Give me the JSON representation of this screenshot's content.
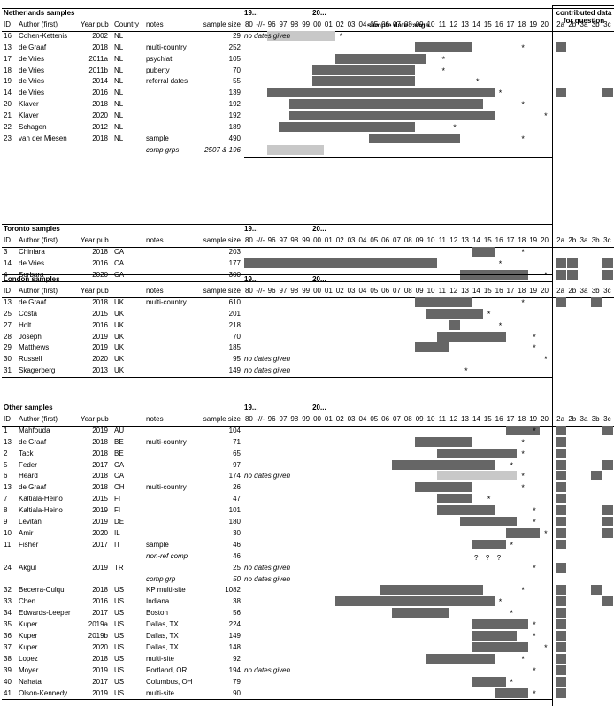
{
  "header": {
    "range_title": "sample date range",
    "contrib_title": "contributed data for question",
    "year_labels": [
      "80",
      "-//-",
      "96",
      "97",
      "98",
      "99",
      "00",
      "01",
      "02",
      "03",
      "04",
      "05",
      "06",
      "07",
      "08",
      "09",
      "10",
      "11",
      "12",
      "13",
      "14",
      "15",
      "16",
      "17",
      "18",
      "19",
      "20"
    ],
    "q_labels": [
      "2a",
      "2b",
      "3a",
      "3b",
      "3c"
    ],
    "era_19": "19...",
    "era_20": "20..."
  },
  "sections": [
    {
      "title": "Netherlands samples",
      "cols": {
        "id": "ID",
        "author": "Author (first)",
        "year": "Year pub",
        "country": "Country",
        "notes": "notes",
        "size": "sample size"
      },
      "rows": [
        {
          "id": "16",
          "author": "Cohen-Kettenis",
          "year": "2002",
          "country": "NL",
          "notes": "",
          "size": "29",
          "range_note": "no dates given",
          "bar": [
            1996,
            2001
          ],
          "light": true,
          "star": 2002,
          "q": []
        },
        {
          "id": "13",
          "author": "de Graaf",
          "year": "2018",
          "country": "NL",
          "notes": "multi-country",
          "size": "252",
          "bar": [
            2009,
            2013
          ],
          "star": 2018,
          "q": [
            "2a"
          ]
        },
        {
          "id": "17",
          "author": "de Vries",
          "year": "2011a",
          "country": "NL",
          "notes": "psychiat",
          "size": "105",
          "bar": [
            2002,
            2009
          ],
          "star": 2011,
          "q": []
        },
        {
          "id": "18",
          "author": "de Vries",
          "year": "2011b",
          "country": "NL",
          "notes": "puberty",
          "size": "70",
          "bar": [
            2000,
            2008
          ],
          "star": 2011,
          "q": []
        },
        {
          "id": "19",
          "author": "de Vries",
          "year": "2014",
          "country": "NL",
          "notes": "referral dates",
          "size": "55",
          "bar": [
            2000,
            2008
          ],
          "star": 2014,
          "q": []
        },
        {
          "id": "14",
          "author": "de Vries",
          "year": "2016",
          "country": "NL",
          "notes": "",
          "size": "139",
          "bar": [
            1996,
            2015
          ],
          "star": 2016,
          "q": [
            "2a",
            "3c"
          ]
        },
        {
          "id": "20",
          "author": "Klaver",
          "year": "2018",
          "country": "NL",
          "notes": "",
          "size": "192",
          "bar": [
            1998,
            2014
          ],
          "star": 2018,
          "q": []
        },
        {
          "id": "21",
          "author": "Klaver",
          "year": "2020",
          "country": "NL",
          "notes": "",
          "size": "192",
          "bar": [
            1998,
            2015
          ],
          "star": 2020,
          "q": []
        },
        {
          "id": "22",
          "author": "Schagen",
          "year": "2012",
          "country": "NL",
          "notes": "",
          "size": "189",
          "bar": [
            1997,
            2008
          ],
          "star": 2012,
          "q": []
        },
        {
          "id": "23",
          "author": "van der Miesen",
          "year": "2018",
          "country": "NL",
          "notes": "sample",
          "size": "490",
          "bar": [
            2005,
            2012
          ],
          "star": 2018,
          "q": []
        },
        {
          "id": "",
          "author": "",
          "year": "",
          "country": "",
          "notes": "comp grps",
          "notes_italic": true,
          "size": "2507 & 196",
          "size_italic": true,
          "bar": [
            1996,
            2000
          ],
          "light": true,
          "q": []
        }
      ]
    },
    {
      "title": "Toronto samples",
      "cols": {
        "id": "ID",
        "author": "Author (first)",
        "year": "Year pub",
        "country": "",
        "notes": "notes",
        "size": "sample size"
      },
      "rows": [
        {
          "id": "3",
          "author": "Chiniara",
          "year": "2018",
          "country": "CA",
          "notes": "",
          "size": "203",
          "bar": [
            2014,
            2015
          ],
          "star": 2018,
          "q": []
        },
        {
          "id": "14",
          "author": "de Vries",
          "year": "2016",
          "country": "CA",
          "notes": "",
          "size": "177",
          "bar": [
            1980,
            2010
          ],
          "star": 2016,
          "q": [
            "2a",
            "2b",
            "3c"
          ]
        },
        {
          "id": "4",
          "author": "Sorbara",
          "year": "2020",
          "country": "CA",
          "notes": "",
          "size": "300",
          "bar": [
            2013,
            2018
          ],
          "star": 2020,
          "q": [
            "2a",
            "2b",
            "3c"
          ]
        }
      ]
    },
    {
      "title": "London samples",
      "cols": {
        "id": "ID",
        "author": "Author (first)",
        "year": "Year pub",
        "country": "",
        "notes": "notes",
        "size": "sample size"
      },
      "rows": [
        {
          "id": "13",
          "author": "de Graaf",
          "year": "2018",
          "country": "UK",
          "notes": "multi-country",
          "size": "610",
          "bar": [
            2009,
            2013
          ],
          "star": 2018,
          "q": [
            "2a",
            "3b"
          ]
        },
        {
          "id": "25",
          "author": "Costa",
          "year": "2015",
          "country": "UK",
          "notes": "",
          "size": "201",
          "bar": [
            2010,
            2014
          ],
          "star": 2015,
          "q": []
        },
        {
          "id": "27",
          "author": "Holt",
          "year": "2016",
          "country": "UK",
          "notes": "",
          "size": "218",
          "bar": [
            2012,
            2012
          ],
          "star": 2016,
          "q": []
        },
        {
          "id": "28",
          "author": "Joseph",
          "year": "2019",
          "country": "UK",
          "notes": "",
          "size": "70",
          "bar": [
            2011,
            2016
          ],
          "star": 2019,
          "q": []
        },
        {
          "id": "29",
          "author": "Matthews",
          "year": "2019",
          "country": "UK",
          "notes": "",
          "size": "185",
          "bar": [
            2009,
            2011
          ],
          "star": 2019,
          "q": []
        },
        {
          "id": "30",
          "author": "Russell",
          "year": "2020",
          "country": "UK",
          "notes": "",
          "size": "95",
          "range_note": "no dates given",
          "star": 2020,
          "q": []
        },
        {
          "id": "31",
          "author": "Skagerberg",
          "year": "2013",
          "country": "UK",
          "notes": "",
          "size": "149",
          "range_note": "no dates given",
          "star": 2013,
          "q": []
        }
      ]
    },
    {
      "title": "Other samples",
      "cols": {
        "id": "ID",
        "author": "Author (first)",
        "year": "Year pub",
        "country": "",
        "notes": "notes",
        "size": "sample size"
      },
      "rows": [
        {
          "id": "1",
          "author": "Mahfouda",
          "year": "2019",
          "country": "AU",
          "notes": "",
          "size": "104",
          "bar": [
            2017,
            2019
          ],
          "star": 2019,
          "q": [
            "2a",
            "3c"
          ]
        },
        {
          "id": "13",
          "author": "de Graaf",
          "year": "2018",
          "country": "BE",
          "notes": "multi-country",
          "size": "71",
          "bar": [
            2009,
            2013
          ],
          "star": 2018,
          "q": [
            "2a"
          ]
        },
        {
          "id": "2",
          "author": "Tack",
          "year": "2018",
          "country": "BE",
          "notes": "",
          "size": "65",
          "bar": [
            2011,
            2017
          ],
          "star": 2018,
          "q": [
            "2a"
          ]
        },
        {
          "id": "5",
          "author": "Feder",
          "year": "2017",
          "country": "CA",
          "notes": "",
          "size": "97",
          "bar": [
            2007,
            2015
          ],
          "star": 2017,
          "q": [
            "2a",
            "3c"
          ]
        },
        {
          "id": "6",
          "author": "Heard",
          "year": "2018",
          "country": "CA",
          "notes": "",
          "size": "174",
          "range_note": "no dates given",
          "bar": [
            2011,
            2017
          ],
          "light": true,
          "star": 2018,
          "q": [
            "2a",
            "3b"
          ]
        },
        {
          "id": "13",
          "author": "de Graaf",
          "year": "2018",
          "country": "CH",
          "notes": "multi-country",
          "size": "26",
          "bar": [
            2009,
            2013
          ],
          "star": 2018,
          "q": [
            "2a"
          ]
        },
        {
          "id": "7",
          "author": "Kaltiala-Heino",
          "year": "2015",
          "country": "FI",
          "notes": "",
          "size": "47",
          "bar": [
            2011,
            2013
          ],
          "star": 2015,
          "q": [
            "2a"
          ]
        },
        {
          "id": "8",
          "author": "Kaltiala-Heino",
          "year": "2019",
          "country": "FI",
          "notes": "",
          "size": "101",
          "bar": [
            2011,
            2015
          ],
          "star": 2019,
          "q": [
            "2a",
            "3c"
          ]
        },
        {
          "id": "9",
          "author": "Levitan",
          "year": "2019",
          "country": "DE",
          "notes": "",
          "size": "180",
          "bar": [
            2013,
            2017
          ],
          "star": 2019,
          "q": [
            "2a",
            "3c"
          ]
        },
        {
          "id": "10",
          "author": "Amir",
          "year": "2020",
          "country": "IL",
          "notes": "",
          "size": "30",
          "bar": [
            2017,
            2019
          ],
          "star": 2020,
          "q": [
            "2a",
            "3c"
          ]
        },
        {
          "id": "11",
          "author": "Fisher",
          "year": "2017",
          "country": "IT",
          "notes": "sample",
          "size": "46",
          "bar": [
            2014,
            2016
          ],
          "star": 2017,
          "q": [
            "2a"
          ]
        },
        {
          "id": "",
          "author": "",
          "year": "",
          "country": "",
          "notes": "non-ref comp",
          "notes_italic": true,
          "size": "46",
          "q_marks": [
            "?",
            "?",
            "?"
          ],
          "q": []
        },
        {
          "id": "24",
          "author": "Akgul",
          "year": "2019",
          "country": "TR",
          "notes": "",
          "size": "25",
          "range_note": "no dates given",
          "star": 2019,
          "q": [
            "2a"
          ]
        },
        {
          "id": "",
          "author": "",
          "year": "",
          "country": "",
          "notes": "comp grp",
          "notes_italic": true,
          "size": "50",
          "size_italic": true,
          "range_note": "no dates given",
          "q": []
        },
        {
          "id": "32",
          "author": "Becerra-Culqui",
          "year": "2018",
          "country": "US",
          "notes": "KP multi-site",
          "size": "1082",
          "bar": [
            2006,
            2014
          ],
          "star": 2018,
          "q": [
            "2a",
            "3b"
          ]
        },
        {
          "id": "33",
          "author": "Chen",
          "year": "2016",
          "country": "US",
          "notes": "Indiana",
          "size": "38",
          "bar": [
            2002,
            2015
          ],
          "star": 2016,
          "q": [
            "2a",
            "3c"
          ]
        },
        {
          "id": "34",
          "author": "Edwards-Leeper",
          "year": "2017",
          "country": "US",
          "notes": "Boston",
          "size": "56",
          "bar": [
            2007,
            2011
          ],
          "star": 2017,
          "q": [
            "2a"
          ]
        },
        {
          "id": "35",
          "author": "Kuper",
          "year": "2019a",
          "country": "US",
          "notes": "Dallas, TX",
          "size": "224",
          "bar": [
            2014,
            2018
          ],
          "star": 2019,
          "q": [
            "2a"
          ]
        },
        {
          "id": "36",
          "author": "Kuper",
          "year": "2019b",
          "country": "US",
          "notes": "Dallas, TX",
          "size": "149",
          "bar": [
            2014,
            2017
          ],
          "star": 2019,
          "q": [
            "2a"
          ]
        },
        {
          "id": "37",
          "author": "Kuper",
          "year": "2020",
          "country": "US",
          "notes": "Dallas, TX",
          "size": "148",
          "bar": [
            2014,
            2018
          ],
          "star": 2020,
          "q": [
            "2a"
          ]
        },
        {
          "id": "38",
          "author": "Lopez",
          "year": "2018",
          "country": "US",
          "notes": "multi-site",
          "size": "92",
          "bar": [
            2010,
            2015
          ],
          "star": 2018,
          "q": [
            "2a"
          ]
        },
        {
          "id": "39",
          "author": "Moyer",
          "year": "2019",
          "country": "US",
          "notes": "Portland, OR",
          "size": "194",
          "range_note": "no dates given",
          "star": 2019,
          "q": [
            "2a"
          ]
        },
        {
          "id": "40",
          "author": "Nahata",
          "year": "2017",
          "country": "US",
          "notes": "Columbus, OH",
          "size": "79",
          "bar": [
            2014,
            2016
          ],
          "star": 2017,
          "q": [
            "2a"
          ]
        },
        {
          "id": "41",
          "author": "Olson-Kennedy",
          "year": "2019",
          "country": "US",
          "notes": "multi-site",
          "size": "90",
          "bar": [
            2016,
            2018
          ],
          "star": 2019,
          "q": [
            "2a"
          ]
        }
      ]
    }
  ],
  "colors": {
    "bar": "#666666",
    "bar_light": "#c8c8c8"
  }
}
